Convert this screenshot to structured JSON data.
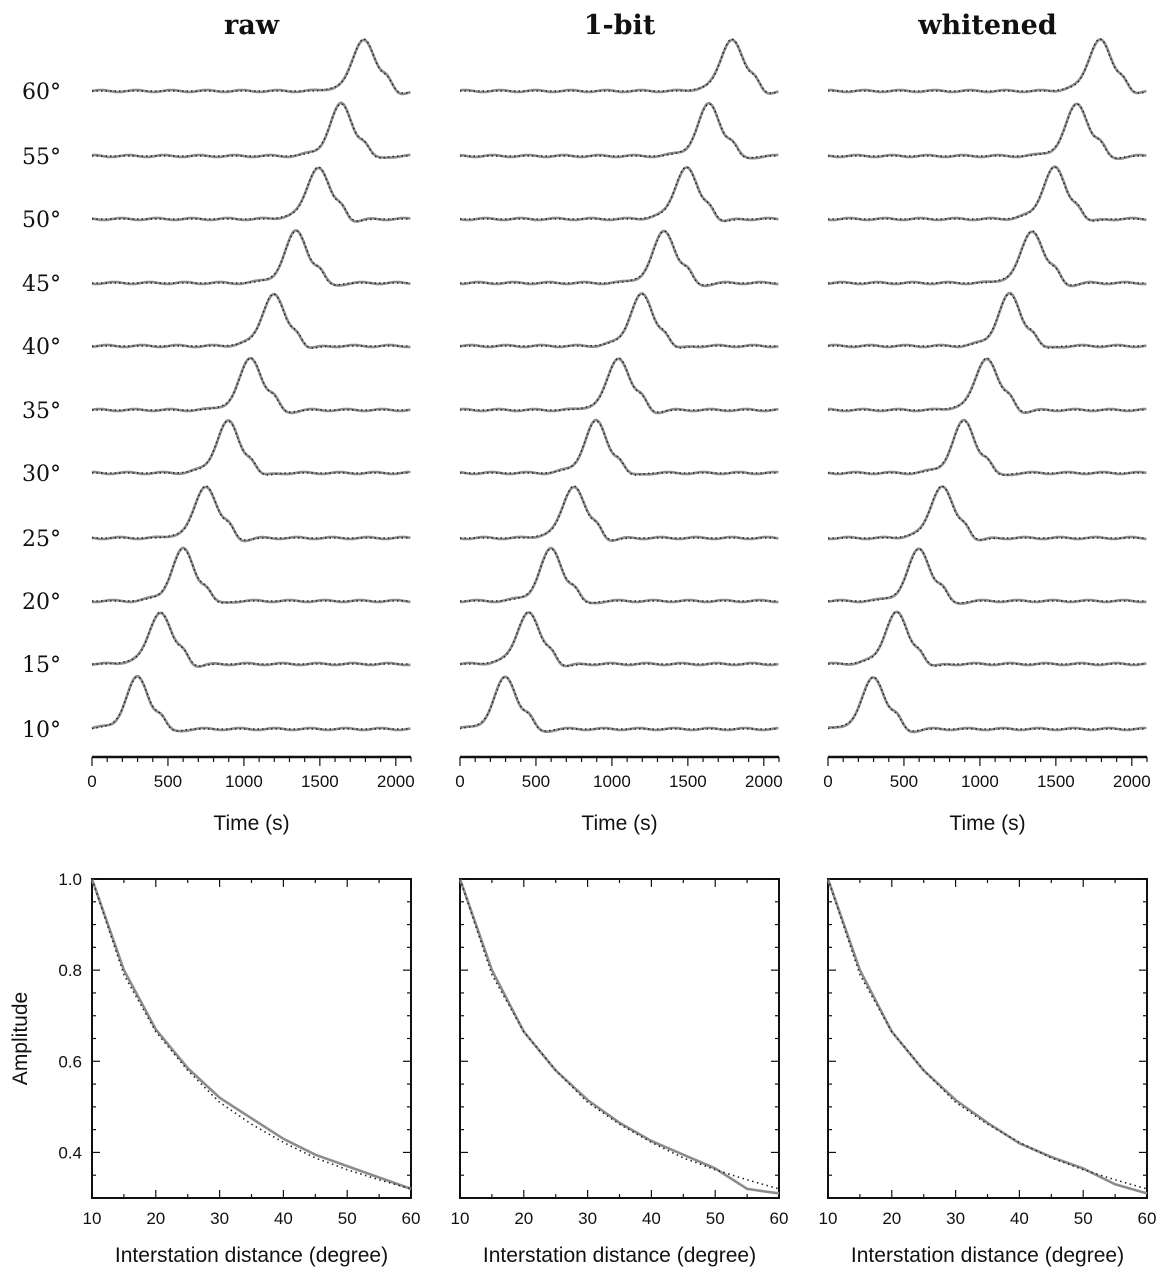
{
  "chart_data": [
    {
      "type": "line",
      "panel": "waveforms",
      "title": "raw",
      "xlabel": "Time (s)",
      "xlim": [
        0,
        2100
      ],
      "xticks": [
        0,
        500,
        1000,
        1500,
        2000
      ],
      "trace_labels": [
        "60°",
        "55°",
        "50°",
        "45°",
        "40°",
        "35°",
        "30°",
        "25°",
        "20°",
        "15°",
        "10°"
      ],
      "distances": [
        60,
        55,
        50,
        45,
        40,
        35,
        30,
        25,
        20,
        15,
        10
      ],
      "peak_times": [
        1790,
        1640,
        1490,
        1345,
        1195,
        1045,
        895,
        750,
        600,
        450,
        300
      ],
      "series": [
        {
          "name": "",
          "style": "solid-gray",
          "color": "#8c8c8c"
        },
        {
          "name": "",
          "style": "dotted-black",
          "color": "#222222"
        }
      ]
    },
    {
      "type": "line",
      "panel": "waveforms",
      "title": "1-bit",
      "xlabel": "Time (s)",
      "xlim": [
        0,
        2100
      ],
      "xticks": [
        0,
        500,
        1000,
        1500,
        2000
      ],
      "trace_labels": [
        "60°",
        "55°",
        "50°",
        "45°",
        "40°",
        "35°",
        "30°",
        "25°",
        "20°",
        "15°",
        "10°"
      ],
      "distances": [
        60,
        55,
        50,
        45,
        40,
        35,
        30,
        25,
        20,
        15,
        10
      ],
      "peak_times": [
        1790,
        1640,
        1490,
        1345,
        1195,
        1045,
        895,
        750,
        600,
        450,
        300
      ],
      "series": [
        {
          "name": "",
          "style": "solid-gray",
          "color": "#8c8c8c"
        },
        {
          "name": "",
          "style": "dotted-black",
          "color": "#222222"
        }
      ]
    },
    {
      "type": "line",
      "panel": "waveforms",
      "title": "whitened",
      "xlabel": "Time (s)",
      "xlim": [
        0,
        2100
      ],
      "xticks": [
        0,
        500,
        1000,
        1500,
        2000
      ],
      "trace_labels": [
        "60°",
        "55°",
        "50°",
        "45°",
        "40°",
        "35°",
        "30°",
        "25°",
        "20°",
        "15°",
        "10°"
      ],
      "distances": [
        60,
        55,
        50,
        45,
        40,
        35,
        30,
        25,
        20,
        15,
        10
      ],
      "peak_times": [
        1790,
        1640,
        1490,
        1345,
        1195,
        1045,
        895,
        750,
        600,
        450,
        300
      ],
      "series": [
        {
          "name": "",
          "style": "solid-gray",
          "color": "#8c8c8c"
        },
        {
          "name": "",
          "style": "dotted-black",
          "color": "#222222"
        }
      ]
    },
    {
      "type": "line",
      "panel": "amplitude",
      "title": "",
      "xlabel": "Interstation distance (degree)",
      "ylabel": "Amplitude",
      "xlim": [
        10,
        60
      ],
      "ylim": [
        0.3,
        1.0
      ],
      "xticks": [
        10,
        20,
        30,
        40,
        50,
        60
      ],
      "yticks": [
        0.4,
        0.6,
        0.8,
        1.0
      ],
      "x": [
        10,
        15,
        20,
        25,
        30,
        35,
        40,
        45,
        50,
        55,
        60
      ],
      "series": [
        {
          "name": "",
          "style": "solid-gray",
          "color": "#8c8c8c",
          "values": [
            1.0,
            0.8,
            0.67,
            0.585,
            0.52,
            0.475,
            0.43,
            0.395,
            0.37,
            0.345,
            0.32
          ]
        },
        {
          "name": "",
          "style": "dotted-black",
          "color": "#222222",
          "values": [
            1.0,
            0.79,
            0.665,
            0.58,
            0.51,
            0.462,
            0.422,
            0.388,
            0.362,
            0.34,
            0.32
          ]
        }
      ]
    },
    {
      "type": "line",
      "panel": "amplitude",
      "title": "",
      "xlabel": "Interstation distance (degree)",
      "ylabel": "",
      "xlim": [
        10,
        60
      ],
      "ylim": [
        0.3,
        1.0
      ],
      "xticks": [
        10,
        20,
        30,
        40,
        50,
        60
      ],
      "yticks": [
        0.4,
        0.6,
        0.8,
        1.0
      ],
      "x": [
        10,
        15,
        20,
        25,
        30,
        35,
        40,
        45,
        50,
        55,
        60
      ],
      "series": [
        {
          "name": "",
          "style": "solid-gray",
          "color": "#8c8c8c",
          "values": [
            1.0,
            0.8,
            0.665,
            0.58,
            0.515,
            0.465,
            0.425,
            0.395,
            0.365,
            0.32,
            0.31
          ]
        },
        {
          "name": "",
          "style": "dotted-black",
          "color": "#222222",
          "values": [
            1.0,
            0.79,
            0.665,
            0.58,
            0.51,
            0.462,
            0.422,
            0.388,
            0.362,
            0.34,
            0.32
          ]
        }
      ]
    },
    {
      "type": "line",
      "panel": "amplitude",
      "title": "",
      "xlabel": "Interstation distance (degree)",
      "ylabel": "",
      "xlim": [
        10,
        60
      ],
      "ylim": [
        0.3,
        1.0
      ],
      "xticks": [
        10,
        20,
        30,
        40,
        50,
        60
      ],
      "yticks": [
        0.4,
        0.6,
        0.8,
        1.0
      ],
      "x": [
        10,
        15,
        20,
        25,
        30,
        35,
        40,
        45,
        50,
        55,
        60
      ],
      "series": [
        {
          "name": "",
          "style": "solid-gray",
          "color": "#8c8c8c",
          "values": [
            1.0,
            0.8,
            0.665,
            0.58,
            0.515,
            0.465,
            0.42,
            0.39,
            0.365,
            0.33,
            0.31
          ]
        },
        {
          "name": "",
          "style": "dotted-black",
          "color": "#222222",
          "values": [
            1.0,
            0.79,
            0.665,
            0.58,
            0.51,
            0.462,
            0.422,
            0.388,
            0.362,
            0.34,
            0.32
          ]
        }
      ]
    }
  ]
}
